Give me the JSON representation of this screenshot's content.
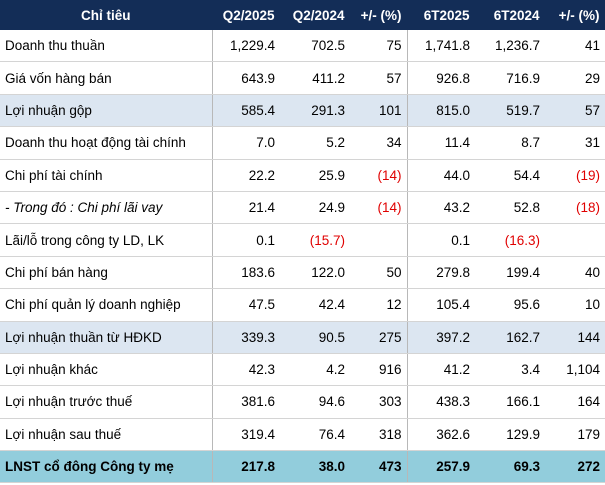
{
  "table": {
    "header": [
      "Chỉ tiêu",
      "Q2/2025",
      "Q2/2024",
      "+/- (%)",
      "6T2025",
      "6T2024",
      "+/- (%)"
    ],
    "rows": [
      [
        "Doanh thu thuần",
        "1,229.4",
        "702.5",
        "75",
        "1,741.8",
        "1,236.7",
        "41"
      ],
      [
        "Giá vốn hàng bán",
        "643.9",
        "411.2",
        "57",
        "926.8",
        "716.9",
        "29"
      ],
      [
        "Lợi nhuận gộp",
        "585.4",
        "291.3",
        "101",
        "815.0",
        "519.7",
        "57"
      ],
      [
        "Doanh thu hoạt động tài chính",
        "7.0",
        "5.2",
        "34",
        "11.4",
        "8.7",
        "31"
      ],
      [
        "Chi phí tài chính",
        "22.2",
        "25.9",
        "(14)",
        "44.0",
        "54.4",
        "(19)"
      ],
      [
        "- Trong đó : Chi phí lãi vay",
        "21.4",
        "24.9",
        "(14)",
        "43.2",
        "52.8",
        "(18)"
      ],
      [
        "Lãi/lỗ trong công ty LD, LK",
        "0.1",
        "(15.7)",
        null,
        "0.1",
        "(16.3)",
        null
      ],
      [
        "Chi phí bán hàng",
        "183.6",
        "122.0",
        "50",
        "279.8",
        "199.4",
        "40"
      ],
      [
        "Chi phí quản lý doanh nghiệp",
        "47.5",
        "42.4",
        "12",
        "105.4",
        "95.6",
        "10"
      ],
      [
        "Lợi nhuận thuần từ HĐKD",
        "339.3",
        "90.5",
        "275",
        "397.2",
        "162.7",
        "144"
      ],
      [
        "Lợi nhuận khác",
        "42.3",
        "4.2",
        "916",
        "41.2",
        "3.4",
        "1,104"
      ],
      [
        "Lợi nhuận trước thuế",
        "381.6",
        "94.6",
        "303",
        "438.3",
        "166.1",
        "164"
      ],
      [
        "Lợi nhuận sau thuế",
        "319.4",
        "76.4",
        "318",
        "362.6",
        "129.9",
        "179"
      ],
      [
        "LNST cổ đông Công ty mẹ",
        "217.8",
        "38.0",
        "473",
        "257.9",
        "69.3",
        "272"
      ]
    ]
  }
}
